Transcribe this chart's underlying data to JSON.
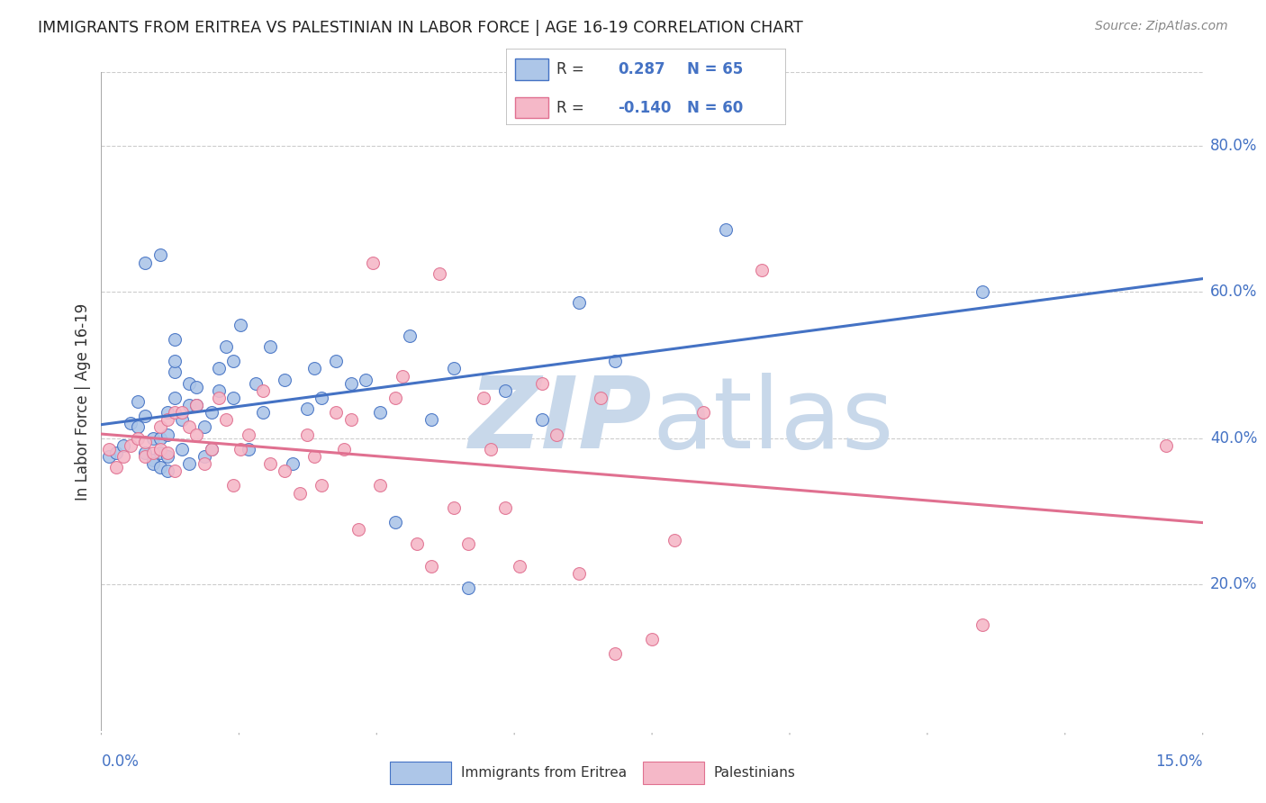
{
  "title": "IMMIGRANTS FROM ERITREA VS PALESTINIAN IN LABOR FORCE | AGE 16-19 CORRELATION CHART",
  "source": "Source: ZipAtlas.com",
  "ylabel": "In Labor Force | Age 16-19",
  "xlim": [
    0.0,
    0.15
  ],
  "ylim": [
    0.0,
    0.9
  ],
  "ytick_labels": [
    "20.0%",
    "40.0%",
    "60.0%",
    "80.0%"
  ],
  "ytick_values": [
    0.2,
    0.4,
    0.6,
    0.8
  ],
  "xtick_labels_left": "0.0%",
  "xtick_labels_right": "15.0%",
  "legend_label1_r": "0.287",
  "legend_label1_n": "65",
  "legend_label2_r": "-0.140",
  "legend_label2_n": "60",
  "legend_bottom_label1": "Immigrants from Eritrea",
  "legend_bottom_label2": "Palestinians",
  "color_eritrea": "#adc6e8",
  "color_palestine": "#f5b8c8",
  "color_line_eritrea": "#4472C4",
  "color_line_palestine": "#e07090",
  "watermark_color": "#c8d8ea",
  "background_color": "#ffffff",
  "grid_color": "#cccccc",
  "title_color": "#222222",
  "axis_color": "#4472C4",
  "eritrea_x": [
    0.001,
    0.002,
    0.003,
    0.004,
    0.005,
    0.005,
    0.006,
    0.006,
    0.006,
    0.007,
    0.007,
    0.007,
    0.008,
    0.008,
    0.008,
    0.008,
    0.009,
    0.009,
    0.009,
    0.009,
    0.01,
    0.01,
    0.01,
    0.01,
    0.011,
    0.011,
    0.012,
    0.012,
    0.012,
    0.013,
    0.013,
    0.014,
    0.014,
    0.015,
    0.015,
    0.016,
    0.016,
    0.017,
    0.018,
    0.018,
    0.019,
    0.02,
    0.021,
    0.022,
    0.023,
    0.025,
    0.026,
    0.028,
    0.029,
    0.03,
    0.032,
    0.034,
    0.036,
    0.038,
    0.04,
    0.042,
    0.045,
    0.048,
    0.05,
    0.055,
    0.06,
    0.065,
    0.07,
    0.085,
    0.12
  ],
  "eritrea_y": [
    0.375,
    0.38,
    0.39,
    0.42,
    0.415,
    0.45,
    0.38,
    0.43,
    0.64,
    0.37,
    0.365,
    0.4,
    0.36,
    0.38,
    0.4,
    0.65,
    0.355,
    0.375,
    0.405,
    0.435,
    0.455,
    0.49,
    0.505,
    0.535,
    0.385,
    0.425,
    0.365,
    0.445,
    0.475,
    0.445,
    0.47,
    0.375,
    0.415,
    0.385,
    0.435,
    0.465,
    0.495,
    0.525,
    0.455,
    0.505,
    0.555,
    0.385,
    0.475,
    0.435,
    0.525,
    0.48,
    0.365,
    0.44,
    0.495,
    0.455,
    0.505,
    0.475,
    0.48,
    0.435,
    0.285,
    0.54,
    0.425,
    0.495,
    0.195,
    0.465,
    0.425,
    0.585,
    0.505,
    0.685,
    0.6
  ],
  "palestine_x": [
    0.001,
    0.002,
    0.003,
    0.004,
    0.005,
    0.006,
    0.006,
    0.007,
    0.008,
    0.008,
    0.009,
    0.009,
    0.01,
    0.01,
    0.011,
    0.012,
    0.013,
    0.013,
    0.014,
    0.015,
    0.016,
    0.017,
    0.018,
    0.019,
    0.02,
    0.022,
    0.023,
    0.025,
    0.027,
    0.028,
    0.029,
    0.03,
    0.032,
    0.033,
    0.034,
    0.035,
    0.037,
    0.038,
    0.04,
    0.041,
    0.043,
    0.045,
    0.046,
    0.048,
    0.05,
    0.052,
    0.053,
    0.055,
    0.057,
    0.06,
    0.062,
    0.065,
    0.068,
    0.07,
    0.075,
    0.078,
    0.082,
    0.09,
    0.12,
    0.145
  ],
  "palestine_y": [
    0.385,
    0.36,
    0.375,
    0.39,
    0.4,
    0.375,
    0.395,
    0.38,
    0.385,
    0.415,
    0.38,
    0.425,
    0.355,
    0.435,
    0.435,
    0.415,
    0.405,
    0.445,
    0.365,
    0.385,
    0.455,
    0.425,
    0.335,
    0.385,
    0.405,
    0.465,
    0.365,
    0.355,
    0.325,
    0.405,
    0.375,
    0.335,
    0.435,
    0.385,
    0.425,
    0.275,
    0.64,
    0.335,
    0.455,
    0.485,
    0.255,
    0.225,
    0.625,
    0.305,
    0.255,
    0.455,
    0.385,
    0.305,
    0.225,
    0.475,
    0.405,
    0.215,
    0.455,
    0.105,
    0.125,
    0.26,
    0.435,
    0.63,
    0.145,
    0.39
  ]
}
